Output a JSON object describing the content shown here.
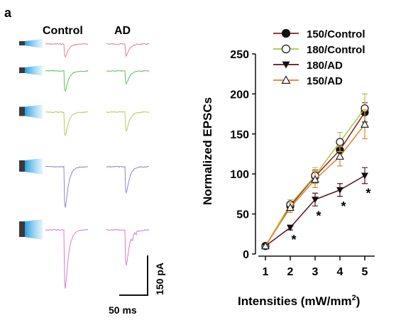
{
  "figure": {
    "panel_label": "a",
    "col_labels": [
      "Control",
      "AD"
    ],
    "scale_y_label": "150 pA",
    "scale_x_label": "50 ms"
  },
  "traces": {
    "rows": [
      {
        "color": "#e57c86",
        "ctrl_amp": 0.22,
        "ad_amp": 0.2
      },
      {
        "color": "#5cc15a",
        "ctrl_amp": 0.35,
        "ad_amp": 0.22
      },
      {
        "color": "#b4cc55",
        "ctrl_amp": 0.4,
        "ad_amp": 0.32
      },
      {
        "color": "#8e86d6",
        "ctrl_amp": 0.7,
        "ad_amp": 0.45
      },
      {
        "color": "#d67ad3",
        "ctrl_amp": 1.0,
        "ad_amp": 0.6
      }
    ]
  },
  "chart_data": {
    "type": "line",
    "title": "",
    "xlabel": "Intensities (mW/mm²)",
    "xlabel_main": "Intensities (mW/mm",
    "xlabel_sup": "2",
    "xlabel_tail": ")",
    "ylabel": "Normalized EPSCs",
    "xlim": [
      0.6,
      5.4
    ],
    "ylim": [
      0,
      250
    ],
    "xticks": [
      1,
      2,
      3,
      4,
      5
    ],
    "yticks": [
      0,
      50,
      100,
      150,
      200,
      250
    ],
    "grid": false,
    "legend_position": "top-right",
    "x": [
      1,
      2,
      3,
      4,
      5
    ],
    "series": [
      {
        "name": "150/Control",
        "marker": "circle-filled",
        "color": "#8a1f1f",
        "values": [
          10,
          60,
          97,
          130,
          177
        ],
        "errors": [
          0,
          5,
          8,
          10,
          12
        ]
      },
      {
        "name": "180/Control",
        "marker": "circle-open",
        "color": "#a8c64a",
        "values": [
          10,
          62,
          98,
          140,
          182
        ],
        "errors": [
          0,
          6,
          10,
          12,
          18
        ]
      },
      {
        "name": "180/AD",
        "marker": "triangle-down-filled",
        "color": "#5a1520",
        "values": [
          10,
          33,
          68,
          80,
          98
        ],
        "errors": [
          0,
          3,
          8,
          8,
          10
        ]
      },
      {
        "name": "150/AD",
        "marker": "triangle-up-open",
        "color": "#e67e22",
        "values": [
          10,
          58,
          93,
          122,
          162
        ],
        "errors": [
          0,
          6,
          10,
          12,
          18
        ]
      }
    ],
    "significance": [
      {
        "x": 2,
        "label": "*"
      },
      {
        "x": 3,
        "label": "*"
      },
      {
        "x": 4,
        "label": "*"
      },
      {
        "x": 5,
        "label": "*"
      }
    ]
  }
}
